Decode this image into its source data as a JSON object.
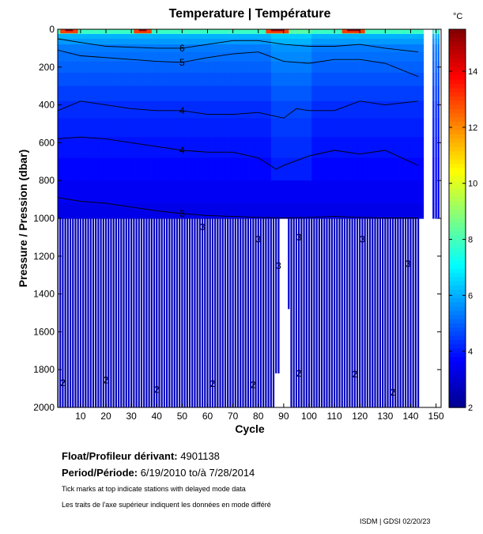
{
  "chart_data": {
    "type": "heatmap",
    "title": "Temperature | Température",
    "xlabel": "Cycle",
    "ylabel": "Pressure / Pression (dbar)",
    "xticks": [
      10,
      20,
      30,
      40,
      50,
      60,
      70,
      80,
      90,
      100,
      110,
      120,
      130,
      140,
      150
    ],
    "yticks": [
      0,
      200,
      400,
      600,
      800,
      1000,
      1200,
      1400,
      1600,
      1800,
      2000
    ],
    "xlim": [
      1,
      152
    ],
    "ylim": [
      2000,
      0
    ],
    "colorbar": {
      "unit": "°C",
      "ticks": [
        2,
        4,
        6,
        8,
        10,
        12,
        14
      ],
      "range": [
        2,
        15.5
      ]
    },
    "contour_levels": [
      2,
      3,
      4,
      5,
      6
    ],
    "contour_lines": [
      {
        "level": 6,
        "x": [
          1,
          10,
          20,
          30,
          40,
          50,
          60,
          70,
          80,
          90,
          100,
          110,
          120,
          130,
          143
        ],
        "y": [
          50,
          70,
          90,
          95,
          100,
          100,
          80,
          60,
          60,
          80,
          90,
          90,
          80,
          100,
          120
        ]
      },
      {
        "level": 5,
        "x": [
          1,
          10,
          20,
          30,
          40,
          50,
          60,
          70,
          80,
          90,
          100,
          110,
          120,
          130,
          143
        ],
        "y": [
          110,
          140,
          150,
          160,
          170,
          175,
          150,
          130,
          120,
          170,
          180,
          160,
          160,
          180,
          250
        ]
      },
      {
        "level": 4,
        "x": [
          1,
          10,
          20,
          30,
          40,
          50,
          60,
          70,
          80,
          90,
          95,
          100,
          110,
          120,
          130,
          143
        ],
        "y": [
          430,
          380,
          400,
          420,
          430,
          430,
          450,
          450,
          440,
          470,
          420,
          430,
          430,
          380,
          400,
          380
        ]
      },
      {
        "level": 4,
        "x": [
          1,
          10,
          20,
          30,
          40,
          50,
          60,
          70,
          80,
          87,
          90,
          100,
          110,
          120,
          130,
          143
        ],
        "y": [
          580,
          570,
          580,
          600,
          620,
          640,
          650,
          650,
          680,
          740,
          720,
          670,
          640,
          660,
          640,
          720
        ]
      },
      {
        "level": 3,
        "x": [
          1,
          10,
          20,
          30,
          40,
          50,
          60,
          70,
          80,
          90,
          100,
          110,
          120,
          130,
          143
        ],
        "y": [
          890,
          910,
          920,
          940,
          960,
          975,
          985,
          990,
          995,
          998,
          995,
          990,
          995,
          998,
          998
        ]
      }
    ],
    "data_depth_max": [
      {
        "cycles": [
          1,
          86
        ],
        "max_pressure": 2000
      },
      {
        "cycles": [
          87,
          88
        ],
        "max_pressure": 1820
      },
      {
        "cycles": [
          89,
          91
        ],
        "max_pressure": 1000
      },
      {
        "cycles": [
          92,
          92
        ],
        "max_pressure": 1480
      },
      {
        "cycles": [
          93,
          143
        ],
        "max_pressure": 2000
      },
      {
        "cycles": [
          149,
          151
        ],
        "max_pressure": 1000
      }
    ],
    "deep_level_labels": [
      {
        "text": "3",
        "x": 58,
        "y": 1045
      },
      {
        "text": "3",
        "x": 80,
        "y": 1110
      },
      {
        "text": "3",
        "x": 88,
        "y": 1250
      },
      {
        "text": "3",
        "x": 96,
        "y": 1100
      },
      {
        "text": "3",
        "x": 121,
        "y": 1110
      },
      {
        "text": "3",
        "x": 139,
        "y": 1240
      },
      {
        "text": "2",
        "x": 3,
        "y": 1870
      },
      {
        "text": "2",
        "x": 20,
        "y": 1855
      },
      {
        "text": "2",
        "x": 40,
        "y": 1905
      },
      {
        "text": "2",
        "x": 62,
        "y": 1875
      },
      {
        "text": "2",
        "x": 78,
        "y": 1880
      },
      {
        "text": "2",
        "x": 96,
        "y": 1820
      },
      {
        "text": "2",
        "x": 118,
        "y": 1825
      },
      {
        "text": "2",
        "x": 133,
        "y": 1920
      }
    ]
  },
  "info": {
    "float_label": "Float/Profileur dérivant:",
    "float_id": "4901138",
    "period_label": "Period/Période:",
    "period_value": "6/19/2010  to/à  7/28/2014",
    "note_en": "Tick marks at top indicate stations with delayed mode data",
    "note_fr": "Les traits de l'axe supérieur indiquent les données en mode différé",
    "credit": "ISDM | GDSI  02/20/23"
  }
}
